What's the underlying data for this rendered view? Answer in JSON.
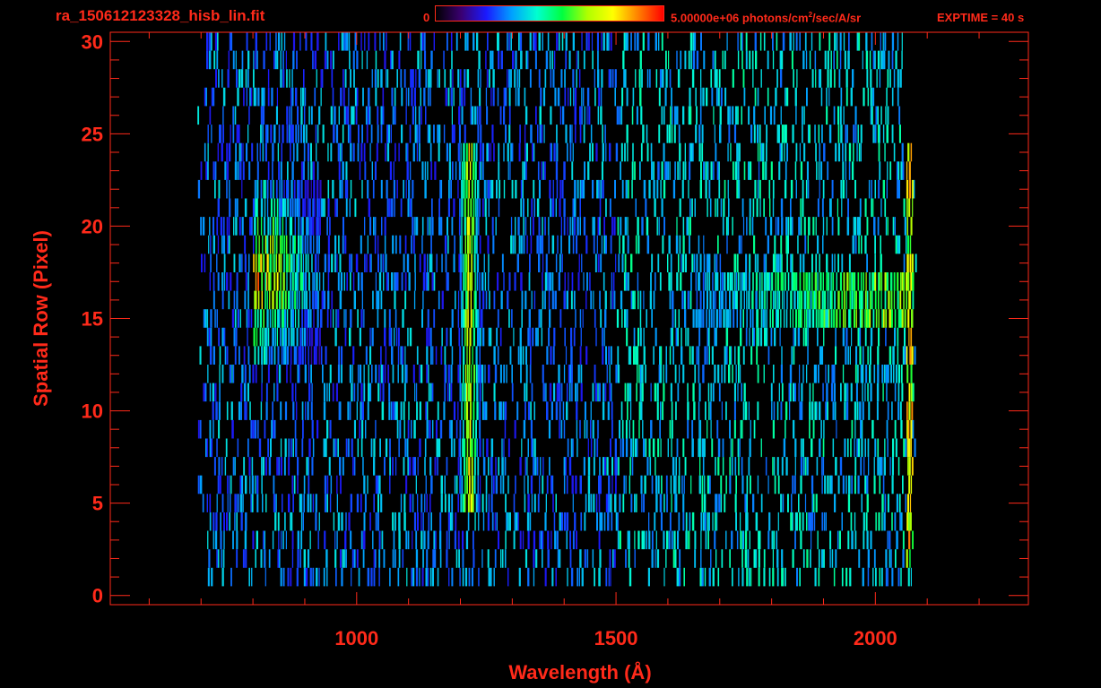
{
  "header": {
    "file_title": "ra_150612123328_hisb_lin.fit",
    "colorbar_min_label": "0",
    "colorbar_max_label_pre": "5.00000e+06 photons/cm",
    "colorbar_max_label_sup": "2",
    "colorbar_max_label_post": "/sec/A/sr",
    "exptime_label": "EXPTIME = 40 s"
  },
  "colors": {
    "axis": "#ff2a1a",
    "background": "#000000",
    "colormap": [
      "#000000",
      "#3a0070",
      "#1a1aff",
      "#00a0ff",
      "#00ffd0",
      "#00ff40",
      "#b0ff00",
      "#ffff00",
      "#ff8000",
      "#ff0000"
    ]
  },
  "chart_data": {
    "type": "heatmap",
    "title": "ra_150612123328_hisb_lin.fit",
    "xlabel": "Wavelength (Å)",
    "ylabel": "Spatial Row (Pixel)",
    "xlim": [
      525,
      2295
    ],
    "ylim": [
      -0.5,
      30.5
    ],
    "x_ticks": [
      1000,
      1500,
      2000
    ],
    "x_tick_labels": [
      "1000",
      "1500",
      "2000"
    ],
    "y_ticks": [
      0,
      5,
      10,
      15,
      20,
      25,
      30
    ],
    "y_tick_labels": [
      "0",
      "5",
      "10",
      "15",
      "20",
      "25",
      "30"
    ],
    "colorbar_range": [
      0,
      5000000
    ],
    "colorbar_units": "photons/cm^2/sec/A/sr",
    "exptime_s": 40,
    "data_extent": {
      "wavelength": [
        690,
        2090
      ],
      "rows": [
        1,
        30
      ]
    },
    "features": [
      {
        "kind": "emission_line",
        "wavelength": 1216,
        "rows": [
          5,
          24
        ],
        "peak_intensity_fraction": 0.8
      },
      {
        "kind": "diffuse_blob",
        "wavelength_range": [
          800,
          930
        ],
        "rows": [
          13,
          22
        ],
        "peak_intensity_fraction": 0.95
      },
      {
        "kind": "continuum_band",
        "wavelength_range": [
          1650,
          2060
        ],
        "rows": [
          15,
          17
        ],
        "peak_intensity_fraction": 0.7
      },
      {
        "kind": "detector_edge",
        "wavelength": 2065,
        "rows": [
          2,
          29
        ],
        "peak_intensity_fraction": 0.9
      }
    ]
  }
}
